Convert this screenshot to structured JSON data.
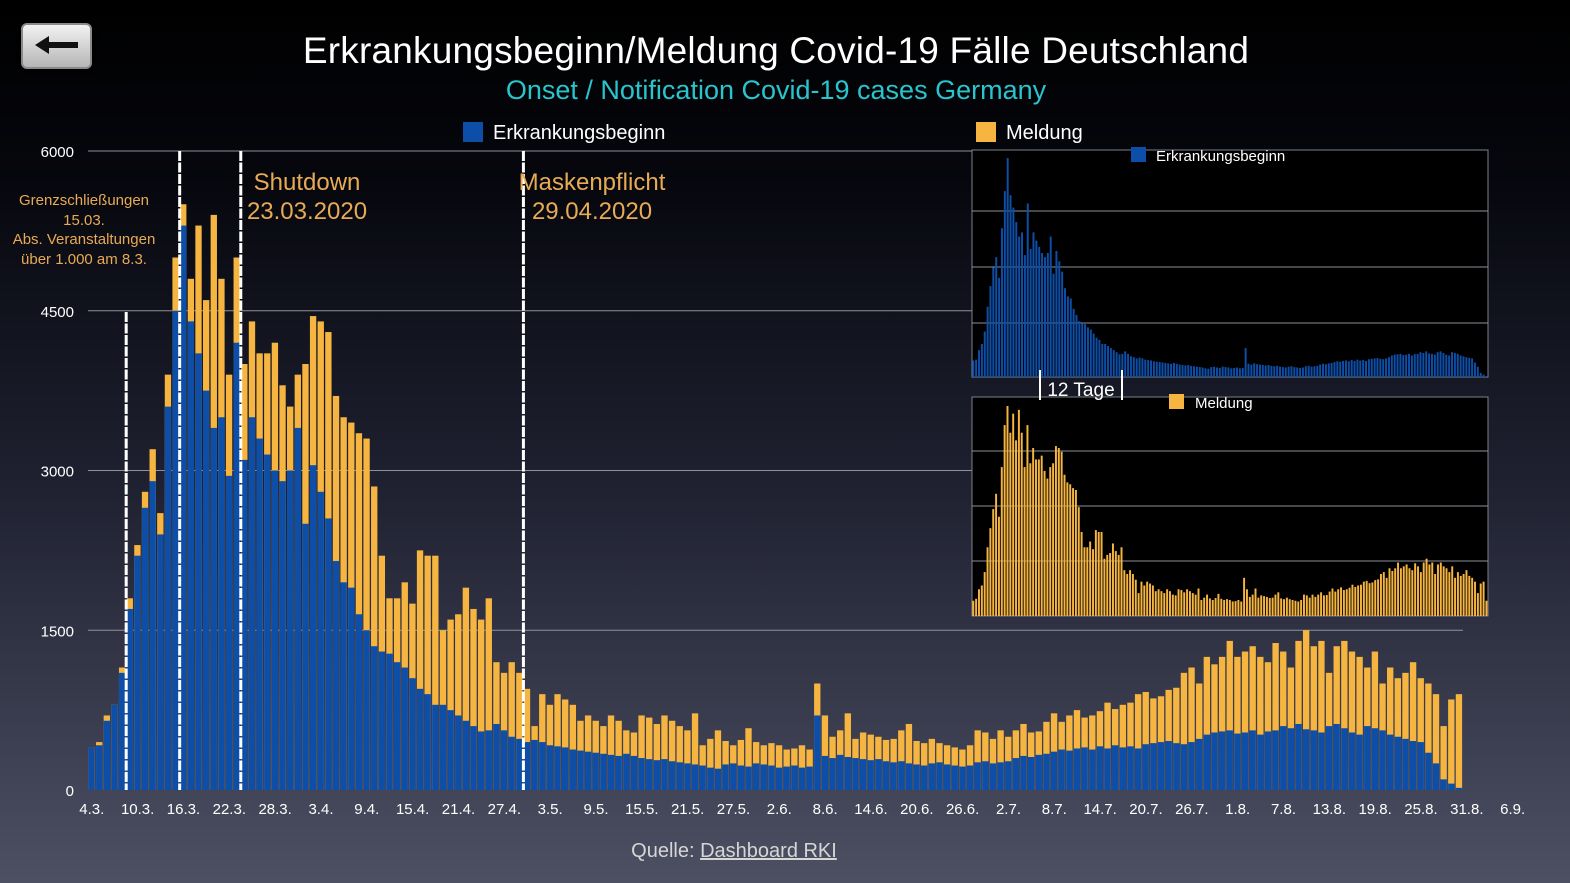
{
  "title": "Erkrankungsbeginn/Meldung Covid-19 Fälle Deutschland",
  "subtitle": "Onset / Notification Covid-19 cases Germany",
  "back_icon": "back-arrow-icon",
  "source": {
    "label": "Quelle:",
    "link_text": "Dashboard RKI"
  },
  "colors": {
    "onset": "#0d4fa8",
    "report": "#f5b540",
    "accent_cyan": "#29c4cd",
    "annotation": "#e8aa55"
  },
  "annotations": {
    "border": [
      "Grenzschließungen",
      "15.03.",
      "Abs. Veranstaltungen",
      "über 1.000 am 8.3."
    ],
    "shutdown": [
      "Shutdown",
      "23.03.2020"
    ],
    "mask": [
      "Maskenpflicht",
      "29.04.2020"
    ]
  },
  "chart_data": [
    {
      "type": "bar",
      "title": "Erkrankungsbeginn/Meldung Covid-19 Fälle Deutschland",
      "subtitle": "Onset / Notification Covid-19 cases Germany",
      "xlabel": "",
      "ylabel": "",
      "ylim": [
        0,
        6000
      ],
      "yticks": [
        0,
        1500,
        3000,
        4500,
        6000
      ],
      "xtick_labels": [
        "4.3.",
        "10.3.",
        "16.3.",
        "22.3.",
        "28.3.",
        "3.4.",
        "9.4.",
        "15.4.",
        "21.4.",
        "27.4.",
        "3.5.",
        "9.5.",
        "15.5.",
        "21.5.",
        "27.5.",
        "2.6.",
        "8.6.",
        "14.6.",
        "20.6.",
        "26.6.",
        "2.7.",
        "8.7.",
        "14.7.",
        "20.7.",
        "26.7.",
        "1.8.",
        "7.8.",
        "13.8.",
        "19.8.",
        "25.8.",
        "31.8.",
        "6.9."
      ],
      "legend": [
        "Erkrankungsbeginn",
        "Meldung"
      ],
      "legend_position": "top",
      "event_lines": [
        "8.3.",
        "15.3.",
        "23.3.",
        "29.4."
      ],
      "series": [
        {
          "name": "Erkrankungsbeginn",
          "values": [
            400,
            420,
            650,
            800,
            1100,
            1700,
            2200,
            2650,
            2900,
            2400,
            3600,
            4500,
            5300,
            4400,
            4100,
            3750,
            3400,
            3500,
            2950,
            4200,
            3100,
            3500,
            3300,
            3150,
            3000,
            2900,
            3000,
            3400,
            2500,
            3050,
            2800,
            2550,
            2150,
            1950,
            1900,
            1650,
            1500,
            1350,
            1300,
            1280,
            1200,
            1150,
            1050,
            950,
            900,
            800,
            800,
            750,
            700,
            650,
            600,
            550,
            560,
            620,
            560,
            500,
            480,
            450,
            470,
            450,
            420,
            410,
            400,
            380,
            370,
            360,
            350,
            340,
            330,
            320,
            340,
            320,
            300,
            290,
            280,
            290,
            270,
            260,
            250,
            240,
            230,
            210,
            200,
            240,
            250,
            230,
            220,
            250,
            240,
            230,
            210,
            220,
            230,
            210,
            220,
            700,
            320,
            300,
            330,
            310,
            300,
            290,
            280,
            290,
            270,
            260,
            270,
            250,
            240,
            230,
            250,
            260,
            240,
            230,
            220,
            230,
            260,
            270,
            250,
            260,
            270,
            300,
            320,
            310,
            330,
            340,
            360,
            380,
            370,
            390,
            400,
            380,
            410,
            390,
            420,
            400,
            410,
            390,
            430,
            440,
            450,
            460,
            440,
            430,
            450,
            480,
            520,
            540,
            550,
            560,
            530,
            540,
            560,
            520,
            550,
            560,
            600,
            580,
            620,
            570,
            560,
            540,
            600,
            620,
            580,
            540,
            520,
            600,
            580,
            560,
            520,
            500,
            480,
            460,
            450,
            350,
            250,
            100,
            60,
            20
          ]
        },
        {
          "name": "Meldung",
          "values": [
            400,
            450,
            700,
            800,
            1150,
            1800,
            2300,
            2800,
            3200,
            2600,
            3900,
            5000,
            5500,
            4800,
            5300,
            4600,
            5400,
            4800,
            3900,
            5000,
            4000,
            4400,
            4100,
            4100,
            4200,
            3800,
            3600,
            3900,
            4000,
            4450,
            4400,
            4300,
            3700,
            3500,
            3450,
            3350,
            3300,
            2850,
            2200,
            1800,
            1800,
            1950,
            1750,
            2250,
            2200,
            2200,
            1500,
            1600,
            1650,
            1900,
            1700,
            1600,
            1800,
            1200,
            1100,
            1200,
            1100,
            950,
            600,
            900,
            800,
            900,
            850,
            800,
            650,
            700,
            650,
            600,
            700,
            650,
            560,
            540,
            700,
            680,
            620,
            700,
            650,
            600,
            560,
            720,
            420,
            480,
            560,
            460,
            420,
            470,
            580,
            450,
            420,
            440,
            420,
            380,
            390,
            420,
            380,
            1000,
            700,
            500,
            560,
            720,
            480,
            540,
            520,
            500,
            470,
            480,
            560,
            620,
            460,
            440,
            480,
            440,
            420,
            400,
            380,
            420,
            560,
            540,
            480,
            560,
            500,
            560,
            620,
            540,
            550,
            640,
            720,
            640,
            700,
            750,
            680,
            700,
            740,
            820,
            760,
            800,
            820,
            900,
            920,
            860,
            880,
            940,
            960,
            1100,
            1150,
            1000,
            1250,
            1180,
            1250,
            1400,
            1250,
            1300,
            1350,
            1250,
            1200,
            1380,
            1300,
            1150,
            1400,
            1500,
            1350,
            1400,
            1100,
            1350,
            1400,
            1300,
            1250,
            1150,
            1300,
            1000,
            1150,
            1050,
            1100,
            1200,
            1050,
            1000,
            900,
            600,
            850,
            900,
            400
          ]
        }
      ]
    },
    {
      "type": "bar",
      "title": "Erkrankungsbeginn",
      "legend": [
        "Erkrankungsbeginn"
      ],
      "series": [
        {
          "name": "Erkrankungsbeginn",
          "values": [
            400,
            420,
            650,
            800,
            1100,
            1700,
            2200,
            2650,
            2900,
            2400,
            3600,
            4500,
            5300,
            4400,
            4100,
            3750,
            3400,
            3500,
            2950,
            4200,
            3100,
            3500,
            3300,
            3150,
            3000,
            2900,
            3000,
            3400,
            2500,
            3050,
            2800,
            2550,
            2150,
            1950,
            1900,
            1650,
            1500,
            1350,
            1300,
            1280,
            1200,
            1150,
            1050,
            950,
            900,
            800,
            800,
            750,
            700,
            650,
            600,
            550,
            560,
            620,
            560,
            500,
            480,
            450,
            470,
            450,
            420,
            410,
            400,
            380,
            370,
            360,
            350,
            340,
            330,
            320,
            340,
            320,
            300,
            290,
            280,
            290,
            270,
            260,
            250,
            240,
            230,
            210,
            200,
            240,
            250,
            230,
            220,
            250,
            240,
            230,
            210,
            220,
            230,
            210,
            220,
            700,
            320,
            300,
            330,
            310,
            300,
            290,
            280,
            290,
            270,
            260,
            270,
            250,
            240,
            230,
            250,
            260,
            240,
            230,
            220,
            230,
            260,
            270,
            250,
            260,
            270,
            300,
            320,
            310,
            330,
            340,
            360,
            380,
            370,
            390,
            400,
            380,
            410,
            390,
            420,
            400,
            410,
            390,
            430,
            440,
            450,
            460,
            440,
            430,
            450,
            480,
            520,
            540,
            550,
            560,
            530,
            540,
            560,
            520,
            550,
            560,
            600,
            580,
            620,
            570,
            560,
            540,
            600,
            620,
            580,
            540,
            520,
            600,
            580,
            560,
            520,
            500,
            480,
            460,
            450,
            350,
            250,
            100,
            60,
            20
          ]
        }
      ]
    },
    {
      "type": "bar",
      "title": "Meldung",
      "legend": [
        "Meldung"
      ],
      "annotation": "12 Tage",
      "series": [
        {
          "name": "Meldung",
          "values": [
            400,
            450,
            700,
            800,
            1150,
            1800,
            2300,
            2800,
            3200,
            2600,
            3900,
            5000,
            5500,
            4800,
            5300,
            4600,
            5400,
            4800,
            3900,
            5000,
            4000,
            4400,
            4100,
            4100,
            4200,
            3800,
            3600,
            3900,
            4000,
            4450,
            4400,
            4300,
            3700,
            3500,
            3450,
            3350,
            3300,
            2850,
            2200,
            1800,
            1800,
            1950,
            1750,
            2250,
            2200,
            2200,
            1500,
            1600,
            1650,
            1900,
            1700,
            1600,
            1800,
            1200,
            1100,
            1200,
            1100,
            950,
            600,
            900,
            800,
            900,
            850,
            800,
            650,
            700,
            650,
            600,
            700,
            650,
            560,
            540,
            700,
            680,
            620,
            700,
            650,
            600,
            560,
            720,
            420,
            480,
            560,
            460,
            420,
            470,
            580,
            450,
            420,
            440,
            420,
            380,
            390,
            420,
            380,
            1000,
            700,
            500,
            560,
            720,
            480,
            540,
            520,
            500,
            470,
            480,
            560,
            620,
            460,
            440,
            480,
            440,
            420,
            400,
            380,
            420,
            560,
            540,
            480,
            560,
            500,
            560,
            620,
            540,
            550,
            640,
            720,
            640,
            700,
            750,
            680,
            700,
            740,
            820,
            760,
            800,
            820,
            900,
            920,
            860,
            880,
            940,
            960,
            1100,
            1150,
            1000,
            1250,
            1180,
            1250,
            1400,
            1250,
            1300,
            1350,
            1250,
            1200,
            1380,
            1300,
            1150,
            1400,
            1500,
            1350,
            1400,
            1100,
            1350,
            1400,
            1300,
            1250,
            1150,
            1300,
            1000,
            1150,
            1050,
            1100,
            1200,
            1050,
            1000,
            900,
            600,
            850,
            900,
            400
          ]
        }
      ]
    }
  ]
}
